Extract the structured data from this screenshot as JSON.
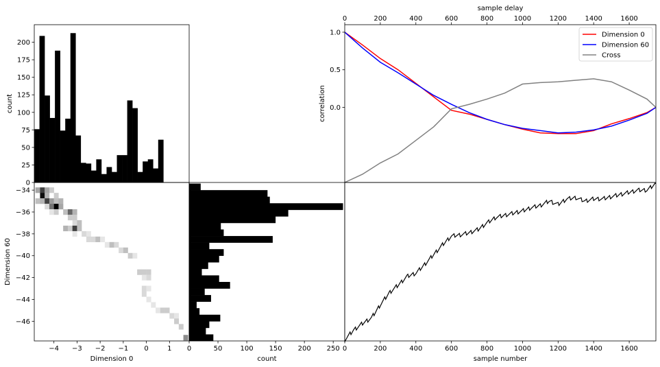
{
  "chart_data": [
    {
      "id": "hist-dim0",
      "type": "bar",
      "ylabel": "count",
      "yticks": [
        0,
        25,
        50,
        75,
        100,
        125,
        150,
        175,
        200
      ],
      "ylim": [
        0,
        225
      ],
      "xlim": [
        -4.85,
        1.85
      ],
      "bin_edges": [
        -4.85,
        -4.626,
        -4.403,
        -4.18,
        -3.957,
        -3.733,
        -3.51,
        -3.287,
        -3.063,
        -2.84,
        -2.617,
        -2.393,
        -2.17,
        -1.947,
        -1.723,
        -1.5,
        -1.277,
        -1.053,
        -0.83,
        -0.607,
        -0.383,
        -0.16,
        0.063,
        0.287,
        0.51,
        0.733,
        0.957,
        1.18,
        1.403,
        1.627,
        1.85
      ],
      "values": [
        76,
        209,
        124,
        92,
        188,
        74,
        91,
        213,
        67,
        28,
        27,
        17,
        33,
        12,
        22,
        15,
        39,
        39,
        117,
        106,
        15,
        30,
        33,
        20,
        61,
        0,
        0,
        0,
        0,
        0
      ]
    },
    {
      "id": "correlation",
      "type": "line",
      "xlabel": "sample delay",
      "ylabel": "correlation",
      "xticks": [
        0,
        200,
        400,
        600,
        800,
        1000,
        1200,
        1400,
        1600
      ],
      "yticks": [
        1.0,
        0.5,
        0.0
      ],
      "ytick_labels": [
        "1.0",
        "0.5",
        "0.0"
      ],
      "xlim": [
        0,
        1750
      ],
      "ylim": [
        -1.0,
        1.1
      ],
      "legend_position": "top-right",
      "x": [
        0,
        100,
        200,
        300,
        400,
        500,
        600,
        700,
        800,
        900,
        1000,
        1100,
        1200,
        1300,
        1400,
        1500,
        1600,
        1700,
        1750
      ],
      "series": [
        {
          "name": "Dimension 0",
          "color": "#ff0000",
          "values": [
            1.0,
            0.83,
            0.65,
            0.5,
            0.32,
            0.14,
            -0.04,
            -0.09,
            -0.16,
            -0.23,
            -0.29,
            -0.34,
            -0.35,
            -0.35,
            -0.31,
            -0.22,
            -0.15,
            -0.07,
            0.0
          ]
        },
        {
          "name": "Dimension 60",
          "color": "#0000ff",
          "values": [
            1.0,
            0.79,
            0.6,
            0.46,
            0.31,
            0.16,
            0.04,
            -0.07,
            -0.16,
            -0.23,
            -0.28,
            -0.31,
            -0.34,
            -0.33,
            -0.3,
            -0.25,
            -0.17,
            -0.08,
            0.0
          ]
        },
        {
          "name": "Cross",
          "color": "#808080",
          "values": [
            -1.0,
            -0.89,
            -0.74,
            -0.62,
            -0.44,
            -0.26,
            -0.02,
            0.04,
            0.11,
            0.19,
            0.31,
            0.33,
            0.34,
            0.36,
            0.38,
            0.34,
            0.23,
            0.11,
            0.0
          ]
        }
      ]
    },
    {
      "id": "hist2d",
      "type": "heatmap",
      "xlabel": "Dimension 0",
      "ylabel": "Dimension 60",
      "xticks": [
        -4,
        -3,
        -2,
        -1,
        0,
        1
      ],
      "yticks": [
        -34,
        -36,
        -38,
        -40,
        -42,
        -44,
        -46
      ],
      "xlim": [
        -4.85,
        1.85
      ],
      "ylim": [
        -47.8,
        -33.3
      ],
      "colormap": "gray_r",
      "cells": [
        [
          -4.7,
          -34.0,
          0.35
        ],
        [
          -4.5,
          -34.0,
          0.75
        ],
        [
          -4.3,
          -34.0,
          0.35
        ],
        [
          -4.1,
          -34.0,
          0.2
        ],
        [
          -4.5,
          -34.5,
          0.95
        ],
        [
          -4.3,
          -34.5,
          0.3
        ],
        [
          -3.9,
          -34.5,
          0.2
        ],
        [
          -4.7,
          -35.0,
          0.25
        ],
        [
          -4.5,
          -35.0,
          0.3
        ],
        [
          -4.3,
          -35.0,
          0.75
        ],
        [
          -4.1,
          -35.0,
          0.4
        ],
        [
          -3.9,
          -35.0,
          0.25
        ],
        [
          -3.7,
          -35.0,
          0.3
        ],
        [
          -4.3,
          -35.5,
          0.15
        ],
        [
          -4.1,
          -35.5,
          0.55
        ],
        [
          -3.9,
          -35.5,
          1.0
        ],
        [
          -3.7,
          -35.5,
          0.35
        ],
        [
          -4.1,
          -36.0,
          0.1
        ],
        [
          -3.9,
          -36.0,
          0.2
        ],
        [
          -3.5,
          -36.0,
          0.25
        ],
        [
          -3.3,
          -36.0,
          0.6
        ],
        [
          -3.1,
          -36.0,
          0.3
        ],
        [
          -3.3,
          -36.5,
          0.2
        ],
        [
          -3.1,
          -36.5,
          0.2
        ],
        [
          -3.1,
          -37.0,
          0.15
        ],
        [
          -2.9,
          -37.0,
          0.25
        ],
        [
          -3.5,
          -37.5,
          0.3
        ],
        [
          -3.3,
          -37.5,
          0.2
        ],
        [
          -3.1,
          -37.5,
          0.75
        ],
        [
          -2.9,
          -37.5,
          0.25
        ],
        [
          -3.1,
          -38.0,
          0.1
        ],
        [
          -2.7,
          -38.0,
          0.15
        ],
        [
          -2.5,
          -38.0,
          0.1
        ],
        [
          -2.5,
          -38.5,
          0.15
        ],
        [
          -2.3,
          -38.5,
          0.15
        ],
        [
          -2.1,
          -38.5,
          0.25
        ],
        [
          -1.9,
          -38.5,
          0.1
        ],
        [
          -1.7,
          -39.0,
          0.1
        ],
        [
          -1.5,
          -39.0,
          0.25
        ],
        [
          -1.3,
          -39.0,
          0.15
        ],
        [
          -1.1,
          -39.5,
          0.15
        ],
        [
          -0.9,
          -39.5,
          0.25
        ],
        [
          -0.7,
          -40.0,
          0.2
        ],
        [
          -0.5,
          -40.0,
          0.1
        ],
        [
          -0.3,
          -41.5,
          0.2
        ],
        [
          -0.1,
          -41.5,
          0.2
        ],
        [
          0.1,
          -41.5,
          0.2
        ],
        [
          -0.1,
          -42.0,
          0.1
        ],
        [
          0.1,
          -42.0,
          0.15
        ],
        [
          -0.1,
          -43.0,
          0.15
        ],
        [
          -0.1,
          -43.5,
          0.15
        ],
        [
          0.1,
          -43.0,
          0.1
        ],
        [
          0.1,
          -44.0,
          0.1
        ],
        [
          0.3,
          -44.5,
          0.1
        ],
        [
          0.5,
          -45.0,
          0.1
        ],
        [
          0.7,
          -45.0,
          0.2
        ],
        [
          0.9,
          -45.0,
          0.2
        ],
        [
          1.1,
          -45.5,
          0.15
        ],
        [
          1.3,
          -45.5,
          0.1
        ],
        [
          1.3,
          -46.0,
          0.2
        ],
        [
          1.5,
          -46.5,
          0.2
        ],
        [
          1.7,
          -47.5,
          0.45
        ]
      ]
    },
    {
      "id": "hist-dim60",
      "type": "bar",
      "orientation": "horizontal",
      "xlabel": "count",
      "xticks": [
        0,
        50,
        100,
        150,
        200,
        250
      ],
      "xlim": [
        0,
        270
      ],
      "bin_edges": [
        -47.8,
        -47.2,
        -46.6,
        -46.0,
        -45.4,
        -44.8,
        -44.2,
        -43.6,
        -43.0,
        -42.4,
        -41.8,
        -41.2,
        -40.6,
        -40.0,
        -39.4,
        -38.8,
        -38.2,
        -37.6,
        -37.0,
        -36.4,
        -35.8,
        -35.2,
        -34.6,
        -34.0,
        -33.4
      ],
      "values": [
        42,
        29,
        35,
        54,
        18,
        13,
        38,
        27,
        71,
        52,
        22,
        33,
        52,
        60,
        35,
        145,
        60,
        55,
        150,
        172,
        267,
        140,
        136,
        20
      ]
    },
    {
      "id": "trace",
      "type": "line",
      "xlabel": "sample number",
      "xticks": [
        0,
        200,
        400,
        600,
        800,
        1000,
        1200,
        1400,
        1600
      ],
      "xlim": [
        0,
        1750
      ],
      "ylim": [
        -47.8,
        -33.3
      ],
      "series": [
        {
          "color": "#000000",
          "x": [
            0,
            50,
            100,
            150,
            200,
            250,
            300,
            350,
            400,
            450,
            500,
            550,
            600,
            650,
            700,
            750,
            800,
            850,
            900,
            950,
            1000,
            1050,
            1100,
            1150,
            1200,
            1250,
            1300,
            1350,
            1400,
            1450,
            1500,
            1550,
            1600,
            1650,
            1700,
            1750
          ],
          "values": [
            -47.7,
            -46.8,
            -46.2,
            -45.7,
            -44.5,
            -43.4,
            -42.7,
            -41.9,
            -41.6,
            -40.8,
            -39.9,
            -39.0,
            -38.2,
            -38.1,
            -37.9,
            -37.6,
            -37.0,
            -36.5,
            -36.3,
            -36.1,
            -35.9,
            -35.6,
            -35.4,
            -35.0,
            -35.3,
            -34.8,
            -34.7,
            -35.0,
            -34.8,
            -34.8,
            -34.6,
            -34.4,
            -34.2,
            -34.0,
            -34.0,
            -33.4
          ]
        }
      ]
    }
  ]
}
